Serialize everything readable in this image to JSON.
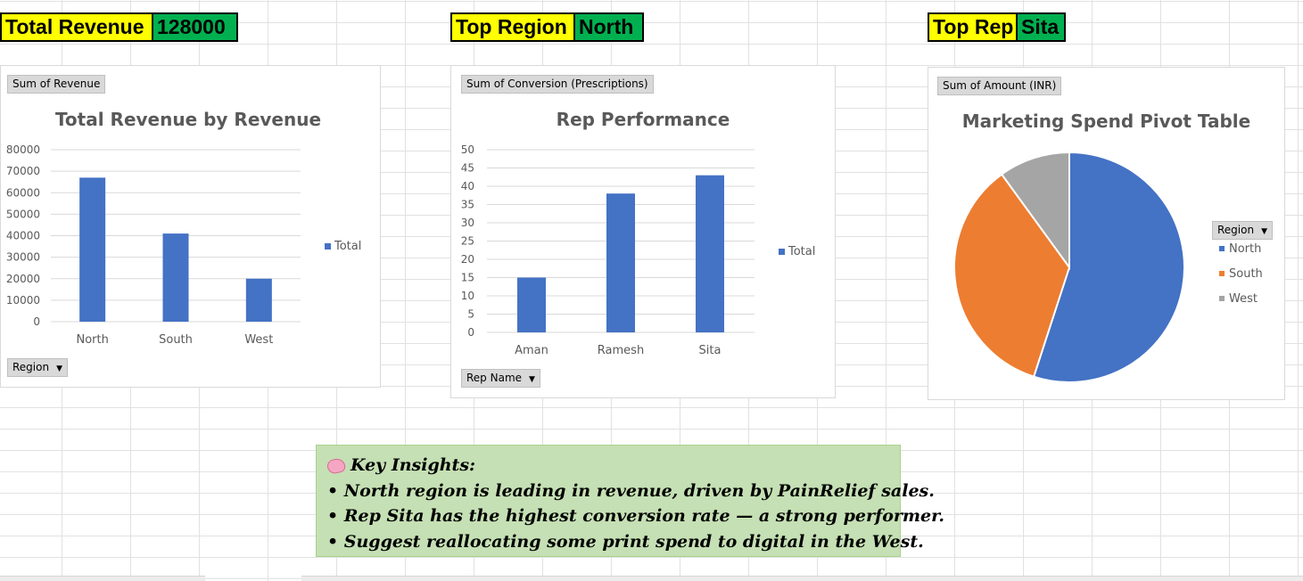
{
  "kpis": {
    "revenue": {
      "label": "Total Revenue",
      "value": "128000"
    },
    "region": {
      "label": "Top Region",
      "value": "North"
    },
    "rep": {
      "label": "Top Rep",
      "value": "Sita"
    }
  },
  "chart1": {
    "field_button": "Sum of Revenue",
    "filter_button": "Region",
    "legend": "Total"
  },
  "chart2": {
    "field_button": "Sum of Conversion (Prescriptions)",
    "filter_button": "Rep Name",
    "legend": "Total"
  },
  "chart3": {
    "field_button": "Sum of Amount (INR)",
    "legend_button": "Region"
  },
  "insights": {
    "heading": "Key Insights:",
    "lines": [
      "• North region is leading in revenue, driven by PainRelief sales.",
      "• Rep Sita has the highest conversion rate — a strong performer.",
      "• Suggest reallocating some print spend to digital in the West."
    ]
  },
  "colors": {
    "blue": "#4472c4",
    "orange": "#ed7d31",
    "gray": "#a5a5a5",
    "kpi_label": "#ffff00",
    "kpi_value": "#00b050"
  },
  "chart_data": [
    {
      "type": "bar",
      "title": "Total Revenue by Revenue",
      "categories": [
        "North",
        "South",
        "West"
      ],
      "series": [
        {
          "name": "Total",
          "values": [
            67000,
            41000,
            20000
          ]
        }
      ],
      "ylim": [
        0,
        80000
      ],
      "yticks": [
        0,
        10000,
        20000,
        30000,
        40000,
        50000,
        60000,
        70000,
        80000
      ],
      "grid": true,
      "legend_position": "right"
    },
    {
      "type": "bar",
      "title": "Rep Performance",
      "categories": [
        "Aman",
        "Ramesh",
        "Sita"
      ],
      "series": [
        {
          "name": "Total",
          "values": [
            15,
            38,
            43
          ]
        }
      ],
      "ylim": [
        0,
        50
      ],
      "yticks": [
        0,
        5,
        10,
        15,
        20,
        25,
        30,
        35,
        40,
        45,
        50
      ],
      "grid": true,
      "legend_position": "right"
    },
    {
      "type": "pie",
      "title": "Marketing Spend Pivot Table",
      "categories": [
        "North",
        "South",
        "West"
      ],
      "values": [
        55,
        35,
        10
      ],
      "legend_position": "right"
    }
  ]
}
